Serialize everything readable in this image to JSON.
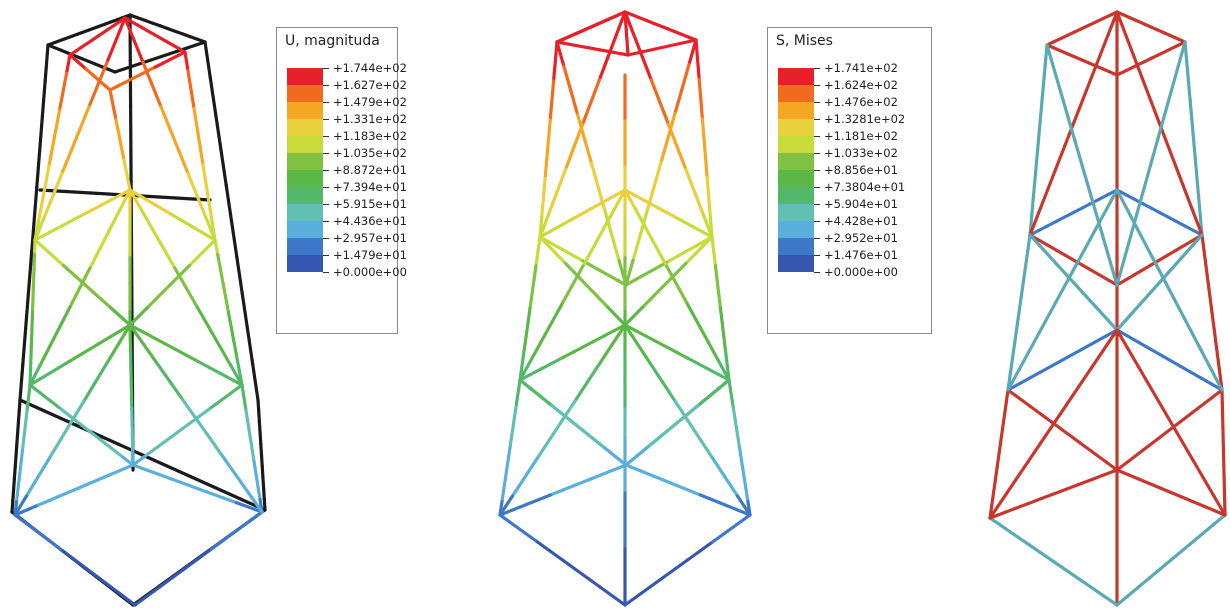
{
  "panels": [
    {
      "name": "displacement",
      "legend": {
        "title": "U, magnituda",
        "values": [
          "+1.744e+02",
          "+1.627e+02",
          "+1.479e+02",
          "+1.331e+02",
          "+1.183e+02",
          "+1.035e+02",
          "+8.872e+01",
          "+7.394e+01",
          "+5.915e+01",
          "+4.436e+01",
          "+2.957e+01",
          "+1.479e+01",
          "+0.000e+00"
        ]
      }
    },
    {
      "name": "mises-stress",
      "legend": {
        "title": "S, Mises",
        "values": [
          "+1.741e+02",
          "+1.624e+02",
          "+1.476e+02",
          "+1.3281e+02",
          "+1.181e+02",
          "+1.033e+02",
          "+8.856e+01",
          "+7.3804e+01",
          "+5.904e+01",
          "+4.428e+01",
          "+2.952e+01",
          "+1.476e+01",
          "+0.000e+00"
        ]
      }
    },
    {
      "name": "third-tower"
    }
  ],
  "colormap": [
    "#e8202a",
    "#f26a1e",
    "#f5a623",
    "#e8d13c",
    "#c7dc3a",
    "#7fc241",
    "#5bb847",
    "#53b86a",
    "#62c0b3",
    "#5ab0dc",
    "#3e78c9",
    "#3657b0"
  ]
}
